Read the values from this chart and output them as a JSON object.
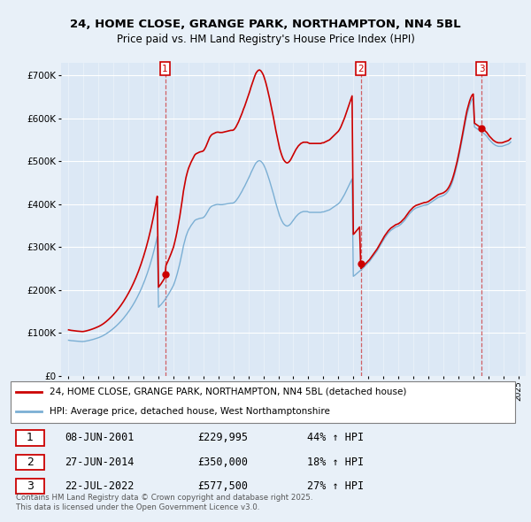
{
  "title": "24, HOME CLOSE, GRANGE PARK, NORTHAMPTON, NN4 5BL",
  "subtitle": "Price paid vs. HM Land Registry's House Price Index (HPI)",
  "legend_label_red": "24, HOME CLOSE, GRANGE PARK, NORTHAMPTON, NN4 5BL (detached house)",
  "legend_label_blue": "HPI: Average price, detached house, West Northamptonshire",
  "footnote": "Contains HM Land Registry data © Crown copyright and database right 2025.\nThis data is licensed under the Open Government Licence v3.0.",
  "transactions": [
    {
      "num": 1,
      "date": "08-JUN-2001",
      "price": "£229,995",
      "change": "44% ↑ HPI",
      "year": 2001.44,
      "price_val": 229995
    },
    {
      "num": 2,
      "date": "27-JUN-2014",
      "price": "£350,000",
      "change": "18% ↑ HPI",
      "year": 2014.49,
      "price_val": 350000
    },
    {
      "num": 3,
      "date": "22-JUL-2022",
      "price": "£577,500",
      "change": "27% ↑ HPI",
      "year": 2022.55,
      "price_val": 577500
    }
  ],
  "background_color": "#e8f0f8",
  "plot_bg_color": "#dce8f5",
  "red_color": "#cc0000",
  "blue_color": "#7bafd4",
  "yticks": [
    0,
    100000,
    200000,
    300000,
    400000,
    500000,
    600000,
    700000
  ],
  "ytick_labels": [
    "£0",
    "£100K",
    "£200K",
    "£300K",
    "£400K",
    "£500K",
    "£600K",
    "£700K"
  ],
  "ylim": [
    0,
    730000
  ],
  "xlim": [
    1994.5,
    2025.5
  ],
  "hpi_years": [
    1995.0,
    1995.083,
    1995.167,
    1995.25,
    1995.333,
    1995.417,
    1995.5,
    1995.583,
    1995.667,
    1995.75,
    1995.833,
    1995.917,
    1996.0,
    1996.083,
    1996.167,
    1996.25,
    1996.333,
    1996.417,
    1996.5,
    1996.583,
    1996.667,
    1996.75,
    1996.833,
    1996.917,
    1997.0,
    1997.083,
    1997.167,
    1997.25,
    1997.333,
    1997.417,
    1997.5,
    1997.583,
    1997.667,
    1997.75,
    1997.833,
    1997.917,
    1998.0,
    1998.083,
    1998.167,
    1998.25,
    1998.333,
    1998.417,
    1998.5,
    1998.583,
    1998.667,
    1998.75,
    1998.833,
    1998.917,
    1999.0,
    1999.083,
    1999.167,
    1999.25,
    1999.333,
    1999.417,
    1999.5,
    1999.583,
    1999.667,
    1999.75,
    1999.833,
    1999.917,
    2000.0,
    2000.083,
    2000.167,
    2000.25,
    2000.333,
    2000.417,
    2000.5,
    2000.583,
    2000.667,
    2000.75,
    2000.833,
    2000.917,
    2001.0,
    2001.083,
    2001.167,
    2001.25,
    2001.333,
    2001.417,
    2001.5,
    2001.583,
    2001.667,
    2001.75,
    2001.833,
    2001.917,
    2002.0,
    2002.083,
    2002.167,
    2002.25,
    2002.333,
    2002.417,
    2002.5,
    2002.583,
    2002.667,
    2002.75,
    2002.833,
    2002.917,
    2003.0,
    2003.083,
    2003.167,
    2003.25,
    2003.333,
    2003.417,
    2003.5,
    2003.583,
    2003.667,
    2003.75,
    2003.833,
    2003.917,
    2004.0,
    2004.083,
    2004.167,
    2004.25,
    2004.333,
    2004.417,
    2004.5,
    2004.583,
    2004.667,
    2004.75,
    2004.833,
    2004.917,
    2005.0,
    2005.083,
    2005.167,
    2005.25,
    2005.333,
    2005.417,
    2005.5,
    2005.583,
    2005.667,
    2005.75,
    2005.833,
    2005.917,
    2006.0,
    2006.083,
    2006.167,
    2006.25,
    2006.333,
    2006.417,
    2006.5,
    2006.583,
    2006.667,
    2006.75,
    2006.833,
    2006.917,
    2007.0,
    2007.083,
    2007.167,
    2007.25,
    2007.333,
    2007.417,
    2007.5,
    2007.583,
    2007.667,
    2007.75,
    2007.833,
    2007.917,
    2008.0,
    2008.083,
    2008.167,
    2008.25,
    2008.333,
    2008.417,
    2008.5,
    2008.583,
    2008.667,
    2008.75,
    2008.833,
    2008.917,
    2009.0,
    2009.083,
    2009.167,
    2009.25,
    2009.333,
    2009.417,
    2009.5,
    2009.583,
    2009.667,
    2009.75,
    2009.833,
    2009.917,
    2010.0,
    2010.083,
    2010.167,
    2010.25,
    2010.333,
    2010.417,
    2010.5,
    2010.583,
    2010.667,
    2010.75,
    2010.833,
    2010.917,
    2011.0,
    2011.083,
    2011.167,
    2011.25,
    2011.333,
    2011.417,
    2011.5,
    2011.583,
    2011.667,
    2011.75,
    2011.833,
    2011.917,
    2012.0,
    2012.083,
    2012.167,
    2012.25,
    2012.333,
    2012.417,
    2012.5,
    2012.583,
    2012.667,
    2012.75,
    2012.833,
    2012.917,
    2013.0,
    2013.083,
    2013.167,
    2013.25,
    2013.333,
    2013.417,
    2013.5,
    2013.583,
    2013.667,
    2013.75,
    2013.833,
    2013.917,
    2014.0,
    2014.083,
    2014.167,
    2014.25,
    2014.333,
    2014.417,
    2014.5,
    2014.583,
    2014.667,
    2014.75,
    2014.833,
    2014.917,
    2015.0,
    2015.083,
    2015.167,
    2015.25,
    2015.333,
    2015.417,
    2015.5,
    2015.583,
    2015.667,
    2015.75,
    2015.833,
    2015.917,
    2016.0,
    2016.083,
    2016.167,
    2016.25,
    2016.333,
    2016.417,
    2016.5,
    2016.583,
    2016.667,
    2016.75,
    2016.833,
    2016.917,
    2017.0,
    2017.083,
    2017.167,
    2017.25,
    2017.333,
    2017.417,
    2017.5,
    2017.583,
    2017.667,
    2017.75,
    2017.833,
    2017.917,
    2018.0,
    2018.083,
    2018.167,
    2018.25,
    2018.333,
    2018.417,
    2018.5,
    2018.583,
    2018.667,
    2018.75,
    2018.833,
    2018.917,
    2019.0,
    2019.083,
    2019.167,
    2019.25,
    2019.333,
    2019.417,
    2019.5,
    2019.583,
    2019.667,
    2019.75,
    2019.833,
    2019.917,
    2020.0,
    2020.083,
    2020.167,
    2020.25,
    2020.333,
    2020.417,
    2020.5,
    2020.583,
    2020.667,
    2020.75,
    2020.833,
    2020.917,
    2021.0,
    2021.083,
    2021.167,
    2021.25,
    2021.333,
    2021.417,
    2021.5,
    2021.583,
    2021.667,
    2021.75,
    2021.833,
    2021.917,
    2022.0,
    2022.083,
    2022.167,
    2022.25,
    2022.333,
    2022.417,
    2022.5,
    2022.583,
    2022.667,
    2022.75,
    2022.833,
    2022.917,
    2023.0,
    2023.083,
    2023.167,
    2023.25,
    2023.333,
    2023.417,
    2023.5,
    2023.583,
    2023.667,
    2023.75,
    2023.833,
    2023.917,
    2024.0,
    2024.083,
    2024.167,
    2024.25,
    2024.333,
    2024.417,
    2024.5
  ],
  "hpi_values": [
    83000,
    82500,
    82100,
    81800,
    81500,
    81200,
    81000,
    80700,
    80500,
    80300,
    80100,
    79900,
    80100,
    80500,
    81000,
    81600,
    82200,
    82900,
    83600,
    84400,
    85200,
    86100,
    87000,
    87900,
    89000,
    90100,
    91400,
    92800,
    94300,
    96000,
    97800,
    99700,
    101700,
    103800,
    106000,
    108300,
    110700,
    113200,
    115800,
    118500,
    121400,
    124400,
    127500,
    130800,
    134200,
    137800,
    141500,
    145400,
    149400,
    153600,
    158000,
    162600,
    167400,
    172400,
    177700,
    183200,
    189000,
    195100,
    201500,
    208200,
    215300,
    222700,
    230500,
    238700,
    247400,
    256600,
    266300,
    276600,
    287500,
    299000,
    311200,
    324100,
    160000,
    163000,
    166000,
    169500,
    173000,
    177000,
    181000,
    185500,
    190000,
    195000,
    200000,
    205500,
    211000,
    219000,
    228000,
    238000,
    249000,
    261000,
    274000,
    288000,
    303000,
    314000,
    325000,
    333000,
    340000,
    345000,
    350000,
    354000,
    358000,
    362000,
    364000,
    365000,
    366000,
    367000,
    367500,
    368000,
    369000,
    372000,
    376000,
    381000,
    386000,
    391000,
    394000,
    396000,
    397000,
    398000,
    399000,
    399500,
    399500,
    399000,
    399000,
    399000,
    399500,
    400000,
    400500,
    401000,
    401500,
    402000,
    402500,
    402500,
    403000,
    405000,
    408000,
    412000,
    416000,
    421000,
    426000,
    431000,
    437000,
    442000,
    448000,
    454000,
    460000,
    466000,
    473000,
    479000,
    485000,
    491000,
    496000,
    499000,
    501000,
    501500,
    500000,
    497000,
    493000,
    487000,
    480000,
    472000,
    463000,
    454000,
    444000,
    434000,
    424000,
    413000,
    402000,
    392000,
    382000,
    373000,
    366000,
    360000,
    355000,
    352000,
    350000,
    349000,
    350000,
    352000,
    355000,
    359000,
    363000,
    367000,
    371000,
    374000,
    377000,
    379000,
    381000,
    382000,
    383000,
    383000,
    383000,
    383000,
    382000,
    381000,
    381000,
    381000,
    381000,
    381000,
    381000,
    381000,
    381000,
    381000,
    381000,
    382000,
    382000,
    383000,
    384000,
    385000,
    386000,
    387000,
    389000,
    391000,
    393000,
    395000,
    397000,
    399000,
    401000,
    404000,
    408000,
    413000,
    418000,
    423000,
    429000,
    435000,
    441000,
    447000,
    453000,
    459000,
    232000,
    234000,
    236500,
    239000,
    241500,
    244000,
    246500,
    249000,
    252000,
    255000,
    258000,
    261000,
    264000,
    267000,
    271000,
    275000,
    279000,
    283000,
    287000,
    291000,
    296000,
    301000,
    306000,
    311000,
    316000,
    321000,
    325000,
    329000,
    333000,
    336000,
    339000,
    341000,
    343000,
    345000,
    347000,
    348000,
    349000,
    351000,
    353000,
    356000,
    359000,
    362000,
    366000,
    370000,
    374000,
    378000,
    381000,
    384000,
    387000,
    389000,
    391000,
    392000,
    393000,
    394000,
    395000,
    396000,
    397000,
    398000,
    398000,
    399000,
    400000,
    402000,
    404000,
    406000,
    408000,
    410000,
    412000,
    414000,
    416000,
    417000,
    418000,
    419000,
    420000,
    422000,
    424000,
    427000,
    431000,
    436000,
    442000,
    449000,
    458000,
    468000,
    479000,
    491000,
    504000,
    518000,
    533000,
    548000,
    564000,
    580000,
    595000,
    609000,
    620000,
    630000,
    638000,
    644000,
    647000,
    580000,
    578000,
    576000,
    574000,
    572000,
    570000,
    568000,
    566000,
    564000,
    561000,
    558000,
    554000,
    550000,
    547000,
    544000,
    541000,
    539000,
    537000,
    536000,
    535000,
    535000,
    535000,
    535000,
    536000,
    537000,
    538000,
    539000,
    540000,
    542000,
    545000
  ]
}
